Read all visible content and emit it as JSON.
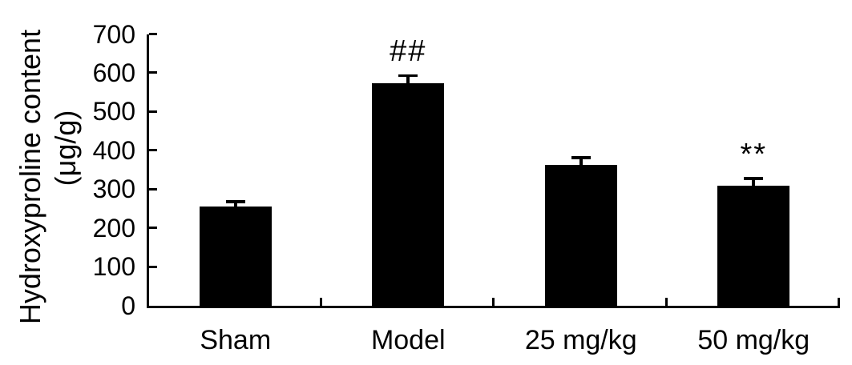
{
  "figure": {
    "background": "#ffffff"
  },
  "chart_data": {
    "type": "bar",
    "title": "",
    "ylabel": "Hydroxyproline content",
    "ylabel_units": "(μg/g)",
    "xlabel": "",
    "categories": [
      "Sham",
      "Model",
      "25 mg/kg",
      "50 mg/kg"
    ],
    "values": [
      255,
      572,
      362,
      308
    ],
    "error_upper": [
      13,
      21,
      19,
      20
    ],
    "significance": [
      "",
      "##",
      "",
      "**"
    ],
    "yticks": [
      0,
      100,
      200,
      300,
      400,
      500,
      600,
      700
    ],
    "ylim": [
      0,
      700
    ],
    "bar_color": "#000000",
    "axis_color": "#000000",
    "text_color": "#000000",
    "grid": false,
    "legend": false
  }
}
